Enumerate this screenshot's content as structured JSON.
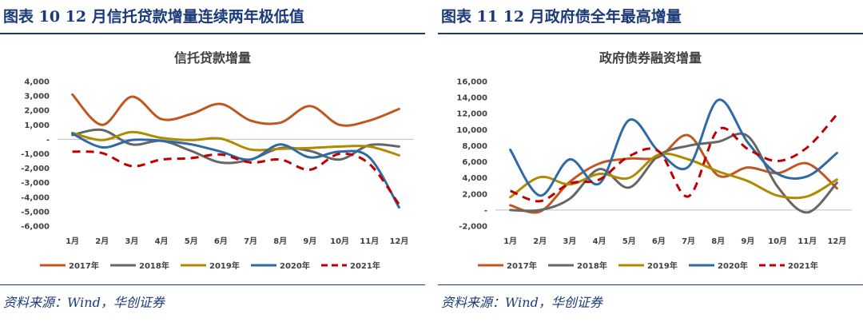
{
  "figures": [
    {
      "figure_title": "图表 10   12 月信托贷款增量连续两年极低值",
      "source": "资料来源：Wind，华创证券"
    },
    {
      "figure_title": "图表 11   12 月政府债全年最高增量",
      "source": "资料来源：Wind，华创证券"
    }
  ],
  "chart_data": [
    {
      "type": "line",
      "title": "信托贷款增量",
      "categories": [
        "1月",
        "2月",
        "3月",
        "4月",
        "5月",
        "6月",
        "7月",
        "8月",
        "9月",
        "10月",
        "11月",
        "12月"
      ],
      "ylim": [
        -6000,
        4000
      ],
      "yticks": [
        4000,
        3000,
        2000,
        1000,
        0,
        -1000,
        -2000,
        -3000,
        -4000,
        -5000,
        -6000
      ],
      "ytick_labels": [
        "4,000",
        "3,000",
        "2,000",
        "1,000",
        "-",
        "-1,000",
        "-2,000",
        "-3,000",
        "-4,000",
        "-5,000",
        "-6,000"
      ],
      "grid": false,
      "legend_position": "bottom",
      "series": [
        {
          "name": "2017年",
          "color": "#c0571f",
          "dash": false,
          "values": [
            3100,
            1000,
            2950,
            1400,
            1750,
            2450,
            1300,
            1150,
            2300,
            1000,
            1300,
            2100
          ]
        },
        {
          "name": "2018年",
          "color": "#666666",
          "dash": false,
          "values": [
            300,
            650,
            -350,
            -100,
            -800,
            -1600,
            -1400,
            -600,
            -800,
            -1400,
            -400,
            -500
          ]
        },
        {
          "name": "2019年",
          "color": "#b08a00",
          "dash": false,
          "values": [
            450,
            -50,
            500,
            100,
            -50,
            50,
            -700,
            -650,
            -600,
            -500,
            -500,
            -1100
          ]
        },
        {
          "name": "2020年",
          "color": "#2e6ba6",
          "dash": false,
          "values": [
            400,
            -550,
            -50,
            -100,
            -350,
            -850,
            -1400,
            -350,
            -1250,
            -850,
            -1250,
            -4700
          ]
        },
        {
          "name": "2021年",
          "color": "#c00000",
          "dash": true,
          "values": [
            -850,
            -950,
            -1850,
            -1400,
            -1300,
            -1050,
            -1600,
            -1400,
            -2100,
            -1000,
            -1700,
            -4500
          ]
        }
      ]
    },
    {
      "type": "line",
      "title": "政府债券融资增量",
      "categories": [
        "1月",
        "2月",
        "3月",
        "4月",
        "5月",
        "6月",
        "7月",
        "8月",
        "9月",
        "10月",
        "11月",
        "12月"
      ],
      "ylim": [
        -2000,
        16000
      ],
      "yticks": [
        16000,
        14000,
        12000,
        10000,
        8000,
        6000,
        4000,
        2000,
        0,
        -2000
      ],
      "ytick_labels": [
        "16,000",
        "14,000",
        "12,000",
        "10,000",
        "8,000",
        "6,000",
        "4,000",
        "2,000",
        "-",
        "-2,000"
      ],
      "grid": false,
      "legend_position": "bottom",
      "series": [
        {
          "name": "2017年",
          "color": "#c0571f",
          "dash": false,
          "values": [
            600,
            -200,
            3500,
            5800,
            6400,
            6600,
            9300,
            4300,
            5300,
            4600,
            5800,
            2700
          ]
        },
        {
          "name": "2018年",
          "color": "#666666",
          "dash": false,
          "values": [
            0,
            0,
            1400,
            5100,
            2800,
            6800,
            8000,
            8500,
            9200,
            2900,
            -300,
            3400
          ]
        },
        {
          "name": "2019年",
          "color": "#b08a00",
          "dash": false,
          "values": [
            1600,
            4100,
            3200,
            4500,
            4000,
            6900,
            6300,
            4800,
            3600,
            1800,
            1700,
            3800
          ]
        },
        {
          "name": "2020年",
          "color": "#2e6ba6",
          "dash": false,
          "values": [
            7500,
            1800,
            6300,
            3300,
            11200,
            7300,
            5400,
            13700,
            8400,
            4500,
            4200,
            7100
          ]
        },
        {
          "name": "2021年",
          "color": "#c00000",
          "dash": true,
          "values": [
            2400,
            1100,
            3300,
            3800,
            6700,
            7300,
            1700,
            10000,
            7600,
            6100,
            7800,
            11900
          ]
        }
      ]
    }
  ]
}
